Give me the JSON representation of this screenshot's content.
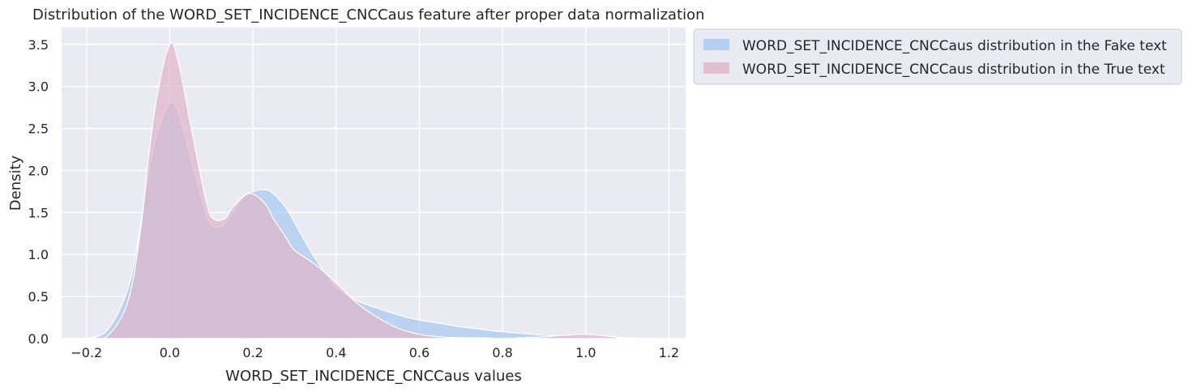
{
  "chart_data": {
    "type": "area",
    "title": "Distribution of the WORD_SET_INCIDENCE_CNCCaus feature after proper data normalization",
    "xlabel": "WORD_SET_INCIDENCE_CNCCaus values",
    "ylabel": "Density",
    "xlim": [
      -0.26,
      1.24
    ],
    "ylim": [
      0,
      3.7
    ],
    "x_ticks": [
      -0.2,
      0.0,
      0.2,
      0.4,
      0.6,
      0.8,
      1.0,
      1.2
    ],
    "x_tick_labels": [
      "−0.2",
      "0.0",
      "0.2",
      "0.4",
      "0.6",
      "0.8",
      "1.0",
      "1.2"
    ],
    "y_ticks": [
      0.0,
      0.5,
      1.0,
      1.5,
      2.0,
      2.5,
      3.0,
      3.5
    ],
    "y_tick_labels": [
      "0.0",
      "0.5",
      "1.0",
      "1.5",
      "2.0",
      "2.5",
      "3.0",
      "3.5"
    ],
    "grid": true,
    "legend_position": "outside-top-right",
    "series": [
      {
        "name": "WORD_SET_INCIDENCE_CNCCaus distribution in the Fake text",
        "color": "#a7c9ef",
        "x": [
          -0.2,
          -0.15,
          -0.1,
          -0.07,
          -0.05,
          -0.03,
          0.0,
          0.02,
          0.05,
          0.08,
          0.1,
          0.13,
          0.15,
          0.18,
          0.2,
          0.23,
          0.25,
          0.28,
          0.3,
          0.35,
          0.4,
          0.45,
          0.5,
          0.55,
          0.6,
          0.65,
          0.7,
          0.75,
          0.8,
          0.85,
          0.9,
          0.95,
          1.0,
          1.05,
          1.1,
          1.15
        ],
        "y": [
          0.0,
          0.1,
          0.6,
          1.35,
          2.0,
          2.45,
          2.8,
          2.7,
          2.15,
          1.6,
          1.35,
          1.35,
          1.5,
          1.7,
          1.75,
          1.77,
          1.72,
          1.55,
          1.38,
          0.95,
          0.62,
          0.45,
          0.36,
          0.28,
          0.22,
          0.18,
          0.14,
          0.11,
          0.08,
          0.06,
          0.04,
          0.03,
          0.02,
          0.02,
          0.01,
          0.0
        ]
      },
      {
        "name": "WORD_SET_INCIDENCE_CNCCaus distribution in the True text",
        "color": "#e0b4c8",
        "x": [
          -0.2,
          -0.15,
          -0.1,
          -0.07,
          -0.05,
          -0.03,
          0.0,
          0.02,
          0.05,
          0.08,
          0.1,
          0.13,
          0.15,
          0.18,
          0.2,
          0.23,
          0.25,
          0.28,
          0.3,
          0.35,
          0.4,
          0.45,
          0.5,
          0.55,
          0.6,
          0.65,
          0.7,
          0.75,
          0.8,
          0.85,
          0.9,
          0.95,
          1.0,
          1.05,
          1.1
        ],
        "y": [
          0.0,
          0.03,
          0.45,
          1.3,
          2.2,
          2.9,
          3.5,
          3.3,
          2.55,
          1.8,
          1.45,
          1.42,
          1.55,
          1.7,
          1.72,
          1.6,
          1.42,
          1.2,
          1.05,
          0.88,
          0.66,
          0.42,
          0.25,
          0.12,
          0.05,
          0.02,
          0.01,
          0.01,
          0.0,
          0.01,
          0.02,
          0.04,
          0.05,
          0.03,
          0.0
        ]
      }
    ]
  }
}
